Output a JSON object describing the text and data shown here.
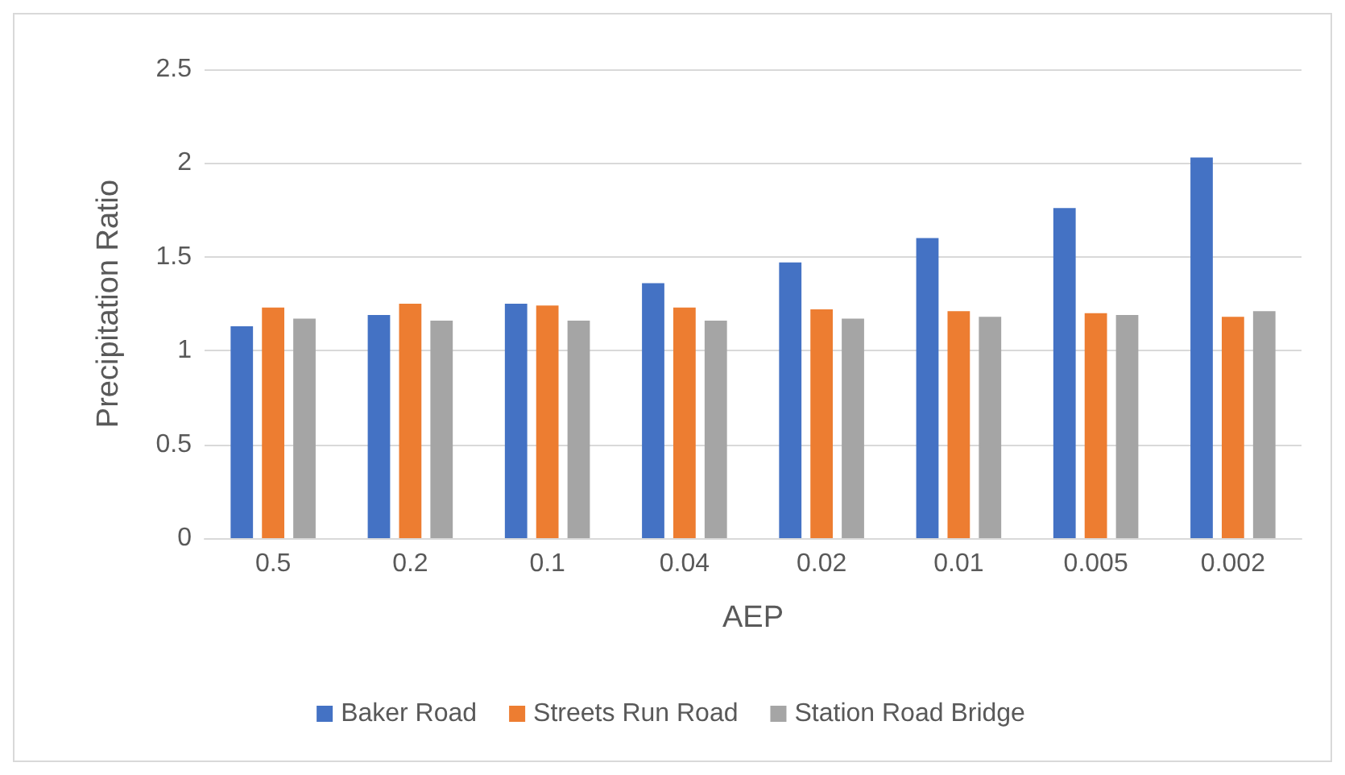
{
  "chart_data": {
    "type": "bar",
    "xlabel": "AEP",
    "ylabel": "Precipitation Ratio",
    "categories": [
      "0.5",
      "0.2",
      "0.1",
      "0.04",
      "0.02",
      "0.01",
      "0.005",
      "0.002"
    ],
    "series": [
      {
        "name": "Baker Road",
        "color": "#4472c4",
        "values": [
          1.13,
          1.19,
          1.25,
          1.36,
          1.47,
          1.6,
          1.76,
          2.03
        ]
      },
      {
        "name": "Streets Run Road",
        "color": "#ed7d31",
        "values": [
          1.23,
          1.25,
          1.24,
          1.23,
          1.22,
          1.21,
          1.2,
          1.18
        ]
      },
      {
        "name": "Station Road Bridge",
        "color": "#a5a5a5",
        "values": [
          1.17,
          1.16,
          1.16,
          1.16,
          1.17,
          1.18,
          1.19,
          1.21
        ]
      }
    ],
    "ylim": [
      0,
      2.5
    ],
    "yticks": [
      0,
      0.5,
      1,
      1.5,
      2,
      2.5
    ],
    "grid": "y",
    "legend": "bottom"
  }
}
